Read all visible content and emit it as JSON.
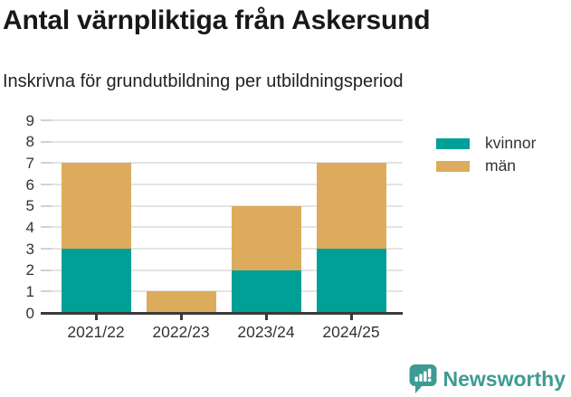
{
  "chart_data": {
    "type": "bar",
    "stacked": true,
    "title": "Antal värnpliktiga från Askersund",
    "subtitle": "Inskrivna för grundutbildning per utbildningsperiod",
    "categories": [
      "2021/22",
      "2022/23",
      "2023/24",
      "2024/25"
    ],
    "series": [
      {
        "name": "kvinnor",
        "color": "#00A096",
        "values": [
          3,
          0,
          2,
          3
        ]
      },
      {
        "name": "män",
        "color": "#DCAC5C",
        "values": [
          4,
          1,
          3,
          4
        ]
      }
    ],
    "totals": [
      7,
      1,
      5,
      7
    ],
    "ylim": [
      0,
      9
    ],
    "ytick_step": 1,
    "yticks": [
      0,
      1,
      2,
      3,
      4,
      5,
      6,
      7,
      8,
      9
    ],
    "xlabel": "",
    "ylabel": "",
    "grid": "horizontal",
    "legend_position": "top-right"
  },
  "colors": {
    "kvinnor": "#00A096",
    "man": "#DCAC5C",
    "gridline": "#e4e4e4",
    "axis": "#3a3a3a",
    "text": "#333333",
    "title": "#181818",
    "brand": "#3E9B94"
  },
  "footer": {
    "brand": "Newsworthy"
  }
}
